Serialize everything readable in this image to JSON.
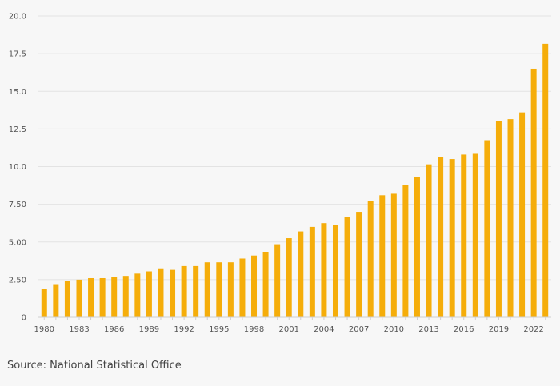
{
  "chart_data": {
    "type": "bar",
    "title": "",
    "xlabel": "",
    "ylabel": "",
    "ylim": [
      0,
      20
    ],
    "y_ticks": [
      "0",
      "2.50",
      "5.00",
      "7.50",
      "10.0",
      "12.5",
      "15.0",
      "17.5",
      "20.0"
    ],
    "x_tick_labels": [
      "1980",
      "1983",
      "1986",
      "1989",
      "1992",
      "1995",
      "1998",
      "2001",
      "2004",
      "2007",
      "2010",
      "2013",
      "2016",
      "2019",
      "2022"
    ],
    "grid": true,
    "legend": "none",
    "bar_color": "#f5ad0a",
    "categories": [
      "1980",
      "1981",
      "1982",
      "1983",
      "1984",
      "1985",
      "1986",
      "1987",
      "1988",
      "1989",
      "1990",
      "1991",
      "1992",
      "1993",
      "1994",
      "1995",
      "1996",
      "1997",
      "1998",
      "1999",
      "2000",
      "2001",
      "2002",
      "2003",
      "2004",
      "2005",
      "2006",
      "2007",
      "2008",
      "2009",
      "2010",
      "2011",
      "2012",
      "2013",
      "2014",
      "2015",
      "2016",
      "2017",
      "2018",
      "2019",
      "2020",
      "2021",
      "2022",
      "2023"
    ],
    "values": [
      1.9,
      2.2,
      2.4,
      2.5,
      2.6,
      2.6,
      2.7,
      2.75,
      2.9,
      3.05,
      3.25,
      3.15,
      3.4,
      3.4,
      3.65,
      3.65,
      3.65,
      3.9,
      4.1,
      4.35,
      4.85,
      5.25,
      5.7,
      6.0,
      6.25,
      6.15,
      6.65,
      7.0,
      7.7,
      8.1,
      8.2,
      8.8,
      9.3,
      10.15,
      10.65,
      10.5,
      10.8,
      10.85,
      11.75,
      13.0,
      13.15,
      13.6,
      16.5,
      18.15
    ]
  },
  "source": "Source: National Statistical Office"
}
